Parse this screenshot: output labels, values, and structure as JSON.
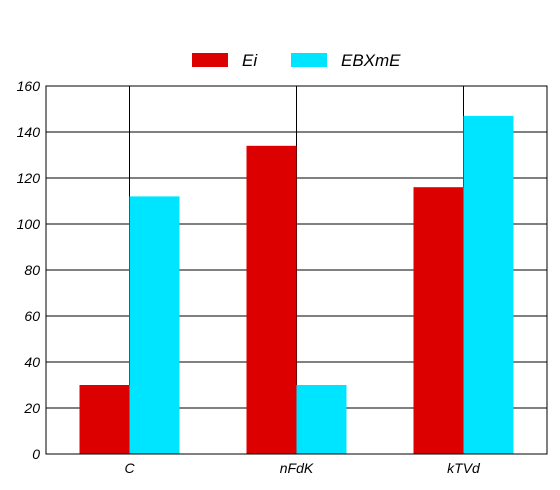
{
  "chart_data": {
    "type": "bar",
    "categories": [
      "C",
      "nFdK",
      "kTVd"
    ],
    "series": [
      {
        "name": "Ei",
        "values": [
          30,
          134,
          116
        ],
        "color": "#dd0000"
      },
      {
        "name": "EBXmE",
        "values": [
          112,
          30,
          147
        ],
        "color": "#00e5ff"
      }
    ],
    "ylim": [
      0,
      160
    ],
    "yticks": [
      0,
      20,
      40,
      60,
      80,
      100,
      120,
      140,
      160
    ],
    "grid": {
      "horizontal": true,
      "vertical_at_categories": true
    },
    "legend_position": "top-center"
  }
}
